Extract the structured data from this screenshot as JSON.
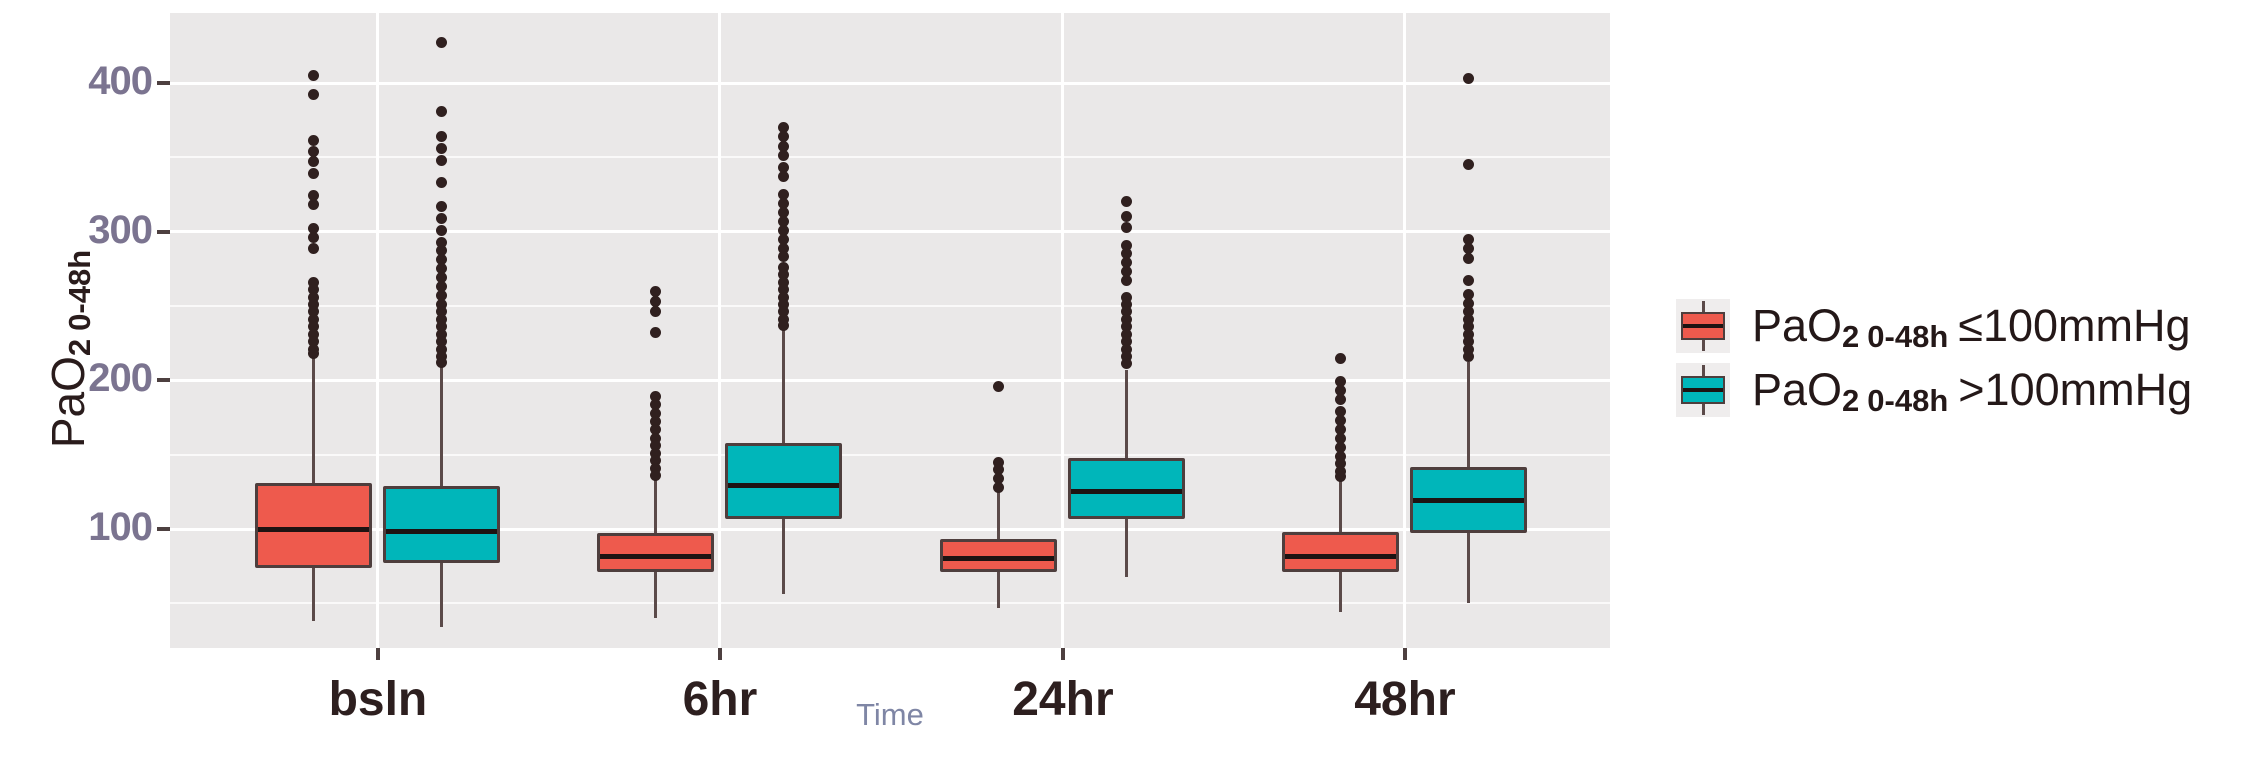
{
  "figure": {
    "background": "#ffffff",
    "panel_background": "#eae8e8",
    "gridline_color": "#ffffff"
  },
  "y_axis": {
    "title_prefix": "PaO",
    "title_sub": "2",
    "title_sub_range": "0-48h",
    "tick_labels": [
      "400",
      "300",
      "200",
      "100"
    ],
    "tick_values": [
      400,
      300,
      200,
      100
    ],
    "minor_values": [
      350,
      250,
      150,
      50
    ],
    "tick_label_color": "#7b7490"
  },
  "x_axis": {
    "title": "Time",
    "categories": [
      "bsln",
      "6hr",
      "24hr",
      "48hr"
    ],
    "label_color": "#2d1f1f",
    "title_color": "#7f86a5"
  },
  "legend": {
    "items": [
      {
        "prefix": "PaO",
        "sub": "2",
        "sub_range": "0-48h",
        "suffix": "≤100mmHg",
        "color": "#ee5a4d"
      },
      {
        "prefix": "PaO",
        "sub": "2",
        "sub_range": "0-48h",
        "suffix": ">100mmHg",
        "color": "#00b6ba"
      }
    ]
  },
  "chart_data": {
    "type": "boxplot",
    "title": "",
    "xlabel": "Time",
    "ylabel": "PaO2 0-48h",
    "categories": [
      "bsln",
      "6hr",
      "24hr",
      "48hr"
    ],
    "ylim": [
      20,
      447
    ],
    "grid": true,
    "legend_position": "right",
    "groups": [
      {
        "name": "PaO2 0-48h ≤100mmHg",
        "color": "#ee5a4d"
      },
      {
        "name": "PaO2 0-48h >100mmHg",
        "color": "#00b6ba"
      }
    ],
    "boxes": [
      {
        "category": "bsln",
        "group": 0,
        "low": 38,
        "q1": 74,
        "median": 100,
        "q3": 131,
        "high": 216,
        "outliers": [
          405,
          392,
          361,
          354,
          347,
          339,
          324,
          318,
          302,
          296,
          289,
          266,
          261,
          256,
          251,
          246,
          241,
          236,
          231,
          226,
          221,
          218
        ]
      },
      {
        "category": "bsln",
        "group": 1,
        "low": 34,
        "q1": 77,
        "median": 99,
        "q3": 129,
        "high": 210,
        "outliers": [
          427,
          381,
          364,
          356,
          348,
          333,
          317,
          309,
          301,
          293,
          287,
          281,
          275,
          269,
          263,
          257,
          251,
          246,
          241,
          236,
          231,
          226,
          221,
          216,
          212
        ]
      },
      {
        "category": "6hr",
        "group": 0,
        "low": 40,
        "q1": 71,
        "median": 82,
        "q3": 97,
        "high": 133,
        "outliers": [
          260,
          253,
          246,
          232,
          189,
          184,
          178,
          172,
          167,
          161,
          156,
          151,
          146,
          141,
          136
        ]
      },
      {
        "category": "6hr",
        "group": 1,
        "low": 56,
        "q1": 107,
        "median": 130,
        "q3": 158,
        "high": 234,
        "outliers": [
          370,
          364,
          357,
          351,
          343,
          337,
          325,
          319,
          313,
          307,
          301,
          295,
          289,
          283,
          276,
          271,
          266,
          261,
          256,
          251,
          246,
          241,
          237
        ]
      },
      {
        "category": "24hr",
        "group": 0,
        "low": 47,
        "q1": 71,
        "median": 81,
        "q3": 93,
        "high": 125,
        "outliers": [
          196,
          145,
          140,
          134,
          128
        ]
      },
      {
        "category": "24hr",
        "group": 1,
        "low": 68,
        "q1": 107,
        "median": 126,
        "q3": 148,
        "high": 207,
        "outliers": [
          320,
          310,
          303,
          291,
          285,
          279,
          273,
          267,
          256,
          251,
          246,
          241,
          236,
          231,
          226,
          221,
          216,
          211
        ]
      },
      {
        "category": "48hr",
        "group": 0,
        "low": 44,
        "q1": 71,
        "median": 82,
        "q3": 98,
        "high": 134,
        "outliers": [
          215,
          199,
          193,
          187,
          179,
          173,
          167,
          161,
          155,
          149,
          144,
          139,
          135
        ]
      },
      {
        "category": "48hr",
        "group": 1,
        "low": 50,
        "q1": 97,
        "median": 120,
        "q3": 142,
        "high": 212,
        "outliers": [
          403,
          345,
          295,
          289,
          282,
          267,
          258,
          252,
          246,
          241,
          236,
          231,
          226,
          221,
          216
        ]
      }
    ]
  }
}
